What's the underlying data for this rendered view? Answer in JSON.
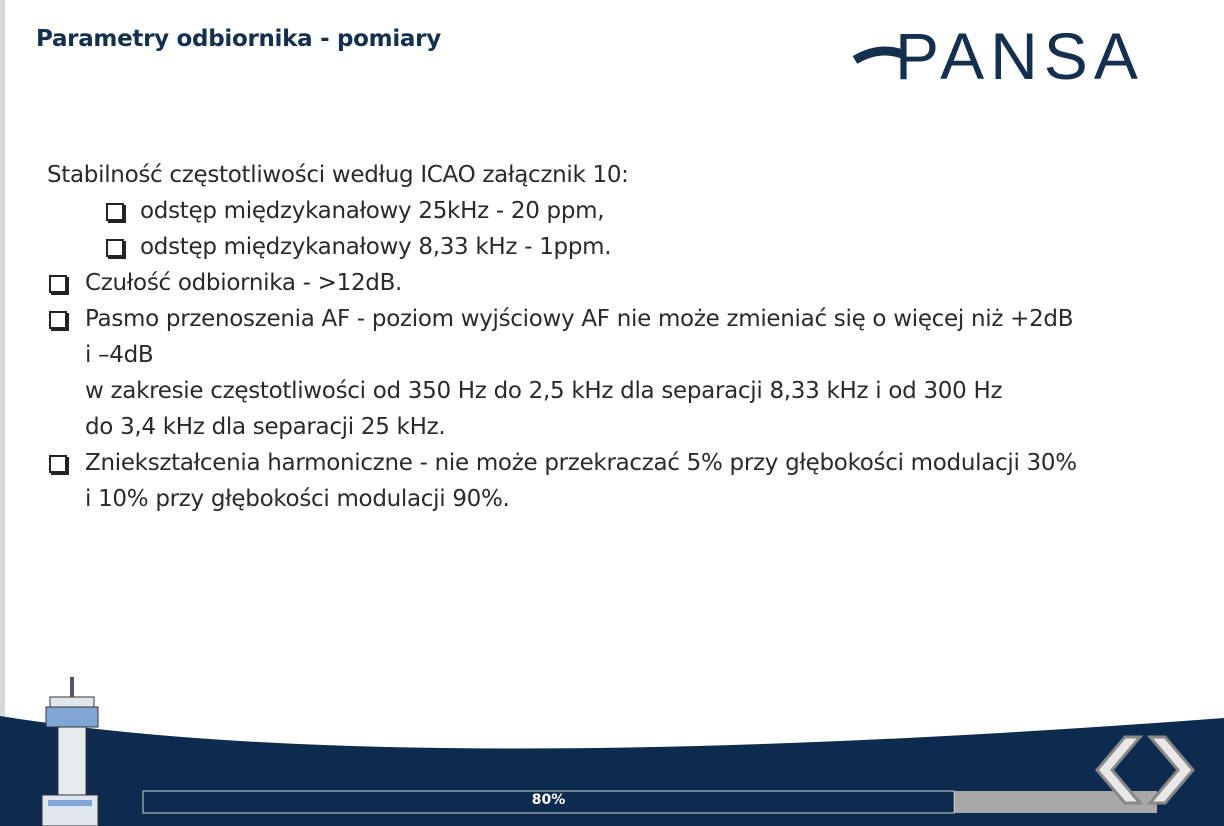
{
  "header": {
    "title": "Parametry odbiornika - pomiary",
    "logo": "PANSA"
  },
  "body": {
    "intro": "Stabilność częstotliwości według ICAO załącznik 10:",
    "sub_items": [
      "odstęp międzykanałowy 25kHz - 20 ppm,",
      "odstęp międzykanałowy 8,33 kHz - 1ppm."
    ],
    "items": [
      [
        "Czułość odbiornika - >12dB."
      ],
      [
        "Pasmo przenoszenia AF - poziom wyjściowy AF nie może zmieniać się o więcej niż +2dB",
        "i –4dB",
        "w zakresie częstotliwości od 350 Hz do 2,5 kHz dla separacji 8,33 kHz i od 300 Hz",
        "do 3,4 kHz dla separacji 25 kHz."
      ],
      [
        "Zniekształcenia harmoniczne - nie może przekraczać 5% przy głębokości modulacji 30%",
        "i 10% przy głębokości modulacji 90%."
      ]
    ]
  },
  "progress": {
    "value": 80,
    "label": "80%"
  }
}
